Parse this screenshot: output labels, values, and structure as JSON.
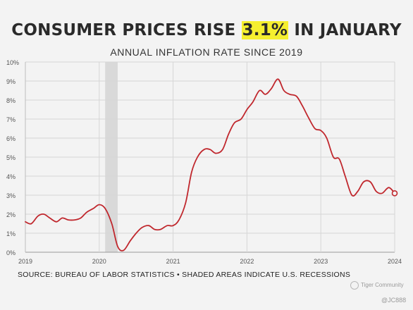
{
  "header": {
    "title_before": "CONSUMER PRICES RISE ",
    "title_highlight": "3.1%",
    "title_after": " IN JANUARY",
    "highlight_color": "#f5ef2f",
    "subtitle": "ANNUAL INFLATION RATE SINCE 2019"
  },
  "footer": {
    "source": "SOURCE: BUREAU OF LABOR STATISTICS • SHADED AREAS INDICATE U.S. RECESSIONS"
  },
  "watermark": {
    "logo_text": "Tiger Community",
    "user_text": "@JC888"
  },
  "chart_data": {
    "type": "line",
    "title": "CONSUMER PRICES RISE 3.1% IN JANUARY",
    "subtitle": "ANNUAL INFLATION RATE SINCE 2019",
    "xlabel": "",
    "ylabel": "",
    "x_ticks": [
      "2019",
      "2020",
      "2021",
      "2022",
      "2023",
      "2024"
    ],
    "y_ticks": [
      "0%",
      "1%",
      "2%",
      "3%",
      "4%",
      "5%",
      "6%",
      "7%",
      "8%",
      "9%",
      "10%"
    ],
    "xlim": [
      2019.0,
      2024.0
    ],
    "ylim": [
      0,
      10
    ],
    "grid": true,
    "line_color": "#c0272d",
    "recession_color": "#d9d9d9",
    "recessions": [
      {
        "start": 2020.08,
        "end": 2020.25
      }
    ],
    "series": [
      {
        "x": [
          2019.0,
          2019.08,
          2019.17,
          2019.25,
          2019.33,
          2019.42,
          2019.5,
          2019.58,
          2019.67,
          2019.75,
          2019.83,
          2019.92,
          2020.0,
          2020.08,
          2020.17,
          2020.25,
          2020.33,
          2020.42,
          2020.5,
          2020.58,
          2020.67,
          2020.75,
          2020.83,
          2020.92,
          2021.0,
          2021.08,
          2021.17,
          2021.25,
          2021.33,
          2021.42,
          2021.5,
          2021.58,
          2021.67,
          2021.75,
          2021.83,
          2021.92,
          2022.0,
          2022.08,
          2022.17,
          2022.25,
          2022.33,
          2022.42,
          2022.5,
          2022.58,
          2022.67,
          2022.75,
          2022.83,
          2022.92,
          2023.0,
          2023.08,
          2023.17,
          2023.25,
          2023.33,
          2023.42,
          2023.5,
          2023.58,
          2023.67,
          2023.75,
          2023.83,
          2023.92,
          2024.0
        ],
        "y": [
          1.6,
          1.5,
          1.9,
          2.0,
          1.8,
          1.6,
          1.8,
          1.7,
          1.7,
          1.8,
          2.1,
          2.3,
          2.5,
          2.3,
          1.5,
          0.3,
          0.1,
          0.6,
          1.0,
          1.3,
          1.4,
          1.2,
          1.2,
          1.4,
          1.4,
          1.7,
          2.6,
          4.2,
          5.0,
          5.4,
          5.4,
          5.2,
          5.4,
          6.2,
          6.8,
          7.0,
          7.5,
          7.9,
          8.5,
          8.3,
          8.6,
          9.1,
          8.5,
          8.3,
          8.2,
          7.7,
          7.1,
          6.5,
          6.4,
          6.0,
          5.0,
          4.9,
          4.0,
          3.0,
          3.2,
          3.7,
          3.7,
          3.2,
          3.1,
          3.4,
          3.1
        ]
      }
    ],
    "last_value": 3.1
  }
}
